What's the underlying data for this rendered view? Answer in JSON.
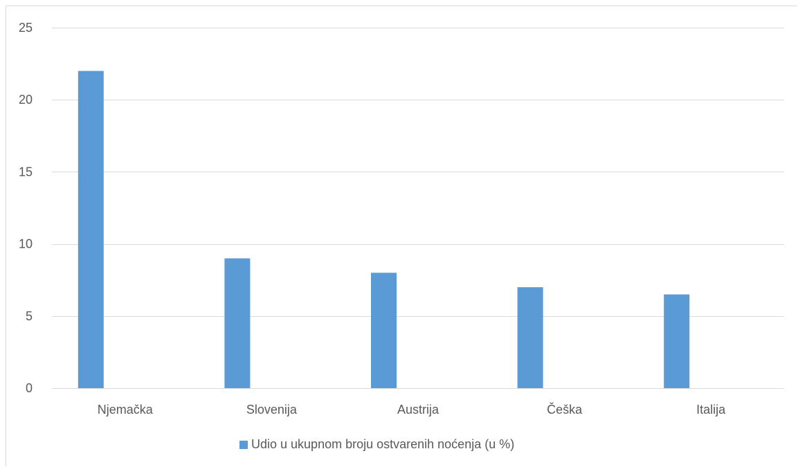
{
  "chart_data": {
    "type": "bar",
    "title": "",
    "xlabel": "",
    "ylabel": "",
    "categories": [
      "Njemačka",
      "Slovenija",
      "Austrija",
      "Češka",
      "Italija"
    ],
    "series": [
      {
        "name": "Udio u ukupnom broju ostvarenih noćenja (u %)",
        "values": [
          22,
          9,
          8,
          7,
          6.5
        ],
        "color": "#5b9bd5"
      }
    ],
    "ylim": [
      0,
      25
    ],
    "yticks": [
      0,
      5,
      10,
      15,
      20,
      25
    ],
    "grid": true,
    "gridline_color": "#d9d9d9",
    "legend_position": "bottom"
  }
}
